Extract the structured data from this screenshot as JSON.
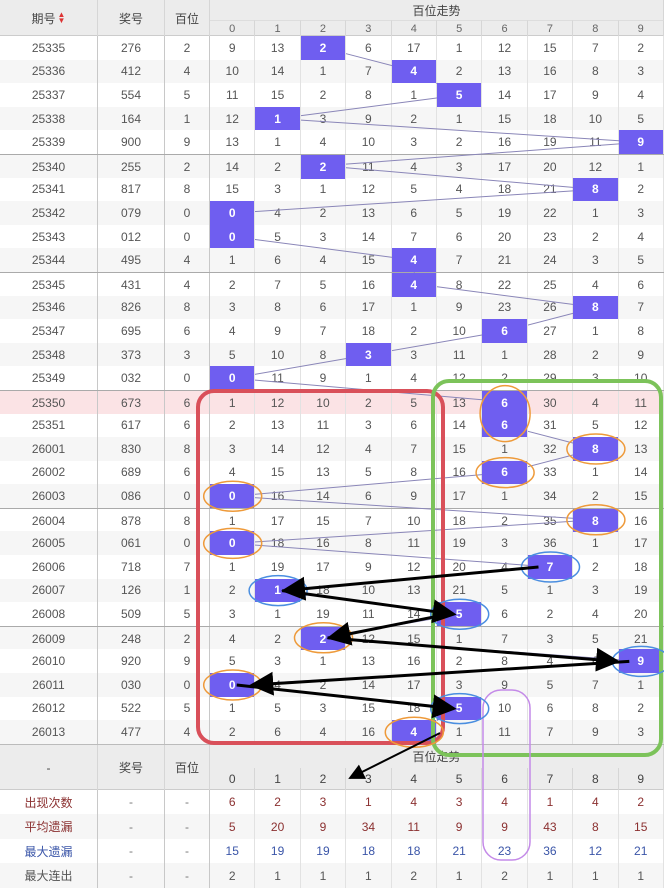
{
  "header": {
    "issue": "期号",
    "prize": "奖号",
    "hundreds": "百位",
    "trend": "百位走势",
    "digits": [
      "0",
      "1",
      "2",
      "3",
      "4",
      "5",
      "6",
      "7",
      "8",
      "9"
    ],
    "sort_icon": "sort-asc-desc"
  },
  "colors": {
    "hit": "#6f5ef0",
    "highlight_row": "#fbe3e5",
    "annotation_red": "#d9505a",
    "annotation_green": "#7cc35a",
    "annotation_orange": "#ee9a3a",
    "annotation_blue": "#4a8ee0",
    "annotation_purple": "#c48ae8",
    "stat_red": "#8b3030",
    "stat_blue": "#3a55a8"
  },
  "rows": [
    {
      "issue": "25335",
      "prize": "276",
      "digit": "2",
      "cells": [
        "9",
        "13",
        "2",
        "6",
        "17",
        "1",
        "12",
        "15",
        "7",
        "2"
      ]
    },
    {
      "issue": "25336",
      "prize": "412",
      "digit": "4",
      "cells": [
        "10",
        "14",
        "1",
        "7",
        "4",
        "2",
        "13",
        "16",
        "8",
        "3"
      ]
    },
    {
      "issue": "25337",
      "prize": "554",
      "digit": "5",
      "cells": [
        "11",
        "15",
        "2",
        "8",
        "1",
        "5",
        "14",
        "17",
        "9",
        "4"
      ]
    },
    {
      "issue": "25338",
      "prize": "164",
      "digit": "1",
      "cells": [
        "12",
        "1",
        "3",
        "9",
        "2",
        "1",
        "15",
        "18",
        "10",
        "5"
      ]
    },
    {
      "issue": "25339",
      "prize": "900",
      "digit": "9",
      "cells": [
        "13",
        "1",
        "4",
        "10",
        "3",
        "2",
        "16",
        "19",
        "11",
        "9"
      ]
    },
    {
      "issue": "25340",
      "prize": "255",
      "digit": "2",
      "cells": [
        "14",
        "2",
        "2",
        "11",
        "4",
        "3",
        "17",
        "20",
        "12",
        "1"
      ]
    },
    {
      "issue": "25341",
      "prize": "817",
      "digit": "8",
      "cells": [
        "15",
        "3",
        "1",
        "12",
        "5",
        "4",
        "18",
        "21",
        "8",
        "2"
      ]
    },
    {
      "issue": "25342",
      "prize": "079",
      "digit": "0",
      "cells": [
        "0",
        "4",
        "2",
        "13",
        "6",
        "5",
        "19",
        "22",
        "1",
        "3"
      ]
    },
    {
      "issue": "25343",
      "prize": "012",
      "digit": "0",
      "cells": [
        "0",
        "5",
        "3",
        "14",
        "7",
        "6",
        "20",
        "23",
        "2",
        "4"
      ]
    },
    {
      "issue": "25344",
      "prize": "495",
      "digit": "4",
      "cells": [
        "1",
        "6",
        "4",
        "15",
        "4",
        "7",
        "21",
        "24",
        "3",
        "5"
      ]
    },
    {
      "issue": "25345",
      "prize": "431",
      "digit": "4",
      "cells": [
        "2",
        "7",
        "5",
        "16",
        "4",
        "8",
        "22",
        "25",
        "4",
        "6"
      ]
    },
    {
      "issue": "25346",
      "prize": "826",
      "digit": "8",
      "cells": [
        "3",
        "8",
        "6",
        "17",
        "1",
        "9",
        "23",
        "26",
        "8",
        "7"
      ]
    },
    {
      "issue": "25347",
      "prize": "695",
      "digit": "6",
      "cells": [
        "4",
        "9",
        "7",
        "18",
        "2",
        "10",
        "6",
        "27",
        "1",
        "8"
      ]
    },
    {
      "issue": "25348",
      "prize": "373",
      "digit": "3",
      "cells": [
        "5",
        "10",
        "8",
        "3",
        "3",
        "11",
        "1",
        "28",
        "2",
        "9"
      ]
    },
    {
      "issue": "25349",
      "prize": "032",
      "digit": "0",
      "cells": [
        "0",
        "11",
        "9",
        "1",
        "4",
        "12",
        "2",
        "29",
        "3",
        "10"
      ]
    },
    {
      "issue": "25350",
      "prize": "673",
      "digit": "6",
      "highlight": true,
      "cells": [
        "1",
        "12",
        "10",
        "2",
        "5",
        "13",
        "6",
        "30",
        "4",
        "11"
      ]
    },
    {
      "issue": "25351",
      "prize": "617",
      "digit": "6",
      "cells": [
        "2",
        "13",
        "11",
        "3",
        "6",
        "14",
        "6",
        "31",
        "5",
        "12"
      ]
    },
    {
      "issue": "26001",
      "prize": "830",
      "digit": "8",
      "cells": [
        "3",
        "14",
        "12",
        "4",
        "7",
        "15",
        "1",
        "32",
        "8",
        "13"
      ]
    },
    {
      "issue": "26002",
      "prize": "689",
      "digit": "6",
      "cells": [
        "4",
        "15",
        "13",
        "5",
        "8",
        "16",
        "6",
        "33",
        "1",
        "14"
      ]
    },
    {
      "issue": "26003",
      "prize": "086",
      "digit": "0",
      "cells": [
        "0",
        "16",
        "14",
        "6",
        "9",
        "17",
        "1",
        "34",
        "2",
        "15"
      ]
    },
    {
      "issue": "26004",
      "prize": "878",
      "digit": "8",
      "cells": [
        "1",
        "17",
        "15",
        "7",
        "10",
        "18",
        "2",
        "35",
        "8",
        "16"
      ]
    },
    {
      "issue": "26005",
      "prize": "061",
      "digit": "0",
      "cells": [
        "0",
        "18",
        "16",
        "8",
        "11",
        "19",
        "3",
        "36",
        "1",
        "17"
      ]
    },
    {
      "issue": "26006",
      "prize": "718",
      "digit": "7",
      "cells": [
        "1",
        "19",
        "17",
        "9",
        "12",
        "20",
        "4",
        "7",
        "2",
        "18"
      ]
    },
    {
      "issue": "26007",
      "prize": "126",
      "digit": "1",
      "cells": [
        "2",
        "1",
        "18",
        "10",
        "13",
        "21",
        "5",
        "1",
        "3",
        "19"
      ]
    },
    {
      "issue": "26008",
      "prize": "509",
      "digit": "5",
      "cells": [
        "3",
        "1",
        "19",
        "11",
        "14",
        "5",
        "6",
        "2",
        "4",
        "20"
      ]
    },
    {
      "issue": "26009",
      "prize": "248",
      "digit": "2",
      "cells": [
        "4",
        "2",
        "2",
        "12",
        "15",
        "1",
        "7",
        "3",
        "5",
        "21"
      ]
    },
    {
      "issue": "26010",
      "prize": "920",
      "digit": "9",
      "cells": [
        "5",
        "3",
        "1",
        "13",
        "16",
        "2",
        "8",
        "4",
        "6",
        "9"
      ]
    },
    {
      "issue": "26011",
      "prize": "030",
      "digit": "0",
      "cells": [
        "0",
        "4",
        "2",
        "14",
        "17",
        "3",
        "9",
        "5",
        "7",
        "1"
      ]
    },
    {
      "issue": "26012",
      "prize": "522",
      "digit": "5",
      "cells": [
        "1",
        "5",
        "3",
        "15",
        "18",
        "5",
        "10",
        "6",
        "8",
        "2"
      ]
    },
    {
      "issue": "26013",
      "prize": "477",
      "digit": "4",
      "cells": [
        "2",
        "6",
        "4",
        "16",
        "4",
        "1",
        "11",
        "7",
        "9",
        "3"
      ]
    }
  ],
  "footer": {
    "dash": "-",
    "prize": "奖号",
    "hundreds": "百位",
    "trend": "百位走势",
    "digits": [
      "0",
      "1",
      "2",
      "3",
      "4",
      "5",
      "6",
      "7",
      "8",
      "9"
    ]
  },
  "stats": [
    {
      "label": "出现次数",
      "prize": "-",
      "hundreds": "-",
      "color": "red",
      "values": [
        "6",
        "2",
        "3",
        "1",
        "4",
        "3",
        "4",
        "1",
        "4",
        "2"
      ]
    },
    {
      "label": "平均遗漏",
      "prize": "-",
      "hundreds": "-",
      "color": "red",
      "values": [
        "5",
        "20",
        "9",
        "34",
        "11",
        "9",
        "9",
        "43",
        "8",
        "15"
      ]
    },
    {
      "label": "最大遗漏",
      "prize": "-",
      "hundreds": "-",
      "color": "blue",
      "values": [
        "15",
        "19",
        "19",
        "18",
        "18",
        "21",
        "23",
        "36",
        "12",
        "21"
      ]
    },
    {
      "label": "最大连出",
      "prize": "-",
      "hundreds": "-",
      "color": "gray",
      "values": [
        "2",
        "1",
        "1",
        "1",
        "2",
        "1",
        "2",
        "1",
        "1",
        "1"
      ]
    }
  ]
}
